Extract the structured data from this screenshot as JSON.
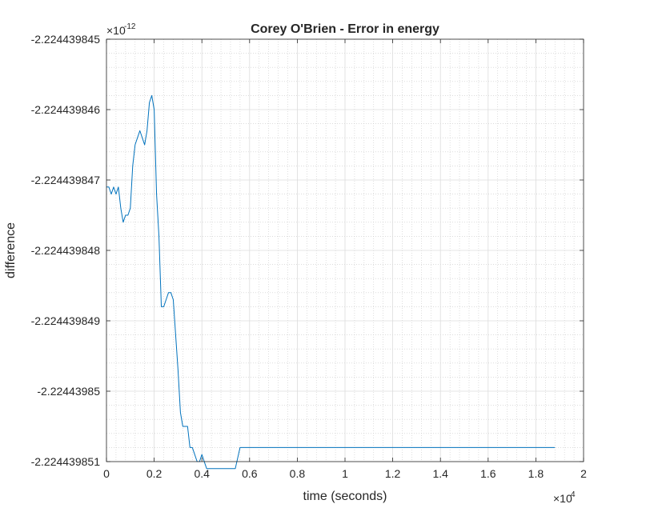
{
  "chart_data": {
    "type": "line",
    "title": "Corey O'Brien - Error in energy",
    "xlabel": "time (seconds)",
    "ylabel": "difference",
    "x_exponent_label": "×10",
    "x_exponent_power": "4",
    "y_exponent_label": "×10",
    "y_exponent_power": "-12",
    "xlim": [
      0,
      20000
    ],
    "ylim": [
      -2.224439851,
      -2.224439845
    ],
    "x_ticks": [
      0,
      2000,
      4000,
      6000,
      8000,
      10000,
      12000,
      14000,
      16000,
      18000,
      20000
    ],
    "x_tick_labels": [
      "0",
      "0.2",
      "0.4",
      "0.6",
      "0.8",
      "1",
      "1.2",
      "1.4",
      "1.6",
      "1.8",
      "2"
    ],
    "y_ticks": [
      -2.224439845,
      -2.224439846,
      -2.224439847,
      -2.224439848,
      -2.224439849,
      -2.22443985,
      -2.224439851
    ],
    "y_tick_labels": [
      "-2.224439845",
      "-2.224439846",
      "-2.224439847",
      "-2.224439848",
      "-2.224439849",
      "-2.22443985",
      "-2.224439851"
    ],
    "grid": true,
    "minor_grid": true,
    "line_color": "#0072bd",
    "series": [
      {
        "x": [
          0,
          100,
          200,
          300,
          400,
          500,
          600,
          700,
          800,
          900,
          1000,
          1100,
          1200,
          1300,
          1400,
          1500,
          1600,
          1700,
          1800,
          1900,
          2000,
          2100,
          2200,
          2300,
          2400,
          2500,
          2600,
          2700,
          2800,
          2900,
          3000,
          3100,
          3200,
          3300,
          3400,
          3500,
          3600,
          3700,
          3800,
          3900,
          4000,
          4200,
          4400,
          4600,
          4800,
          5000,
          5200,
          5400,
          5600,
          5800,
          6000,
          6200,
          6400,
          6600,
          6800,
          7000,
          7200,
          7400,
          7600,
          8000,
          9000,
          10000,
          12000,
          14000,
          16000,
          18000,
          18800
        ],
        "y": [
          -2.2244398471,
          -2.2244398471,
          -2.2244398472,
          -2.2244398471,
          -2.2244398472,
          -2.2244398471,
          -2.2244398474,
          -2.2244398476,
          -2.2244398475,
          -2.2244398475,
          -2.2244398474,
          -2.2244398468,
          -2.2244398465,
          -2.2244398464,
          -2.2244398463,
          -2.2244398464,
          -2.2244398465,
          -2.2244398463,
          -2.2244398459,
          -2.2244398458,
          -2.224439846,
          -2.2244398472,
          -2.2244398478,
          -2.2244398488,
          -2.2244398488,
          -2.2244398487,
          -2.2244398486,
          -2.2244398486,
          -2.2244398487,
          -2.2244398492,
          -2.2244398497,
          -2.2244398503,
          -2.2244398505,
          -2.2244398505,
          -2.2244398505,
          -2.2244398508,
          -2.2244398508,
          -2.2244398509,
          -2.224439851,
          -2.224439851,
          -2.2244398509,
          -2.2244398511,
          -2.2244398511,
          -2.2244398511,
          -2.2244398511,
          -2.2244398511,
          -2.2244398511,
          -2.2244398511,
          -2.2244398508,
          -2.2244398508,
          -2.2244398508,
          -2.2244398508,
          -2.2244398508,
          -2.2244398508,
          -2.2244398508,
          -2.2244398508,
          -2.2244398508,
          -2.2244398508,
          -2.2244398508,
          -2.2244398508,
          -2.2244398508,
          -2.2244398508,
          -2.2244398508,
          -2.2244398508,
          -2.2244398508,
          -2.2244398508,
          -2.2244398508
        ]
      }
    ]
  }
}
